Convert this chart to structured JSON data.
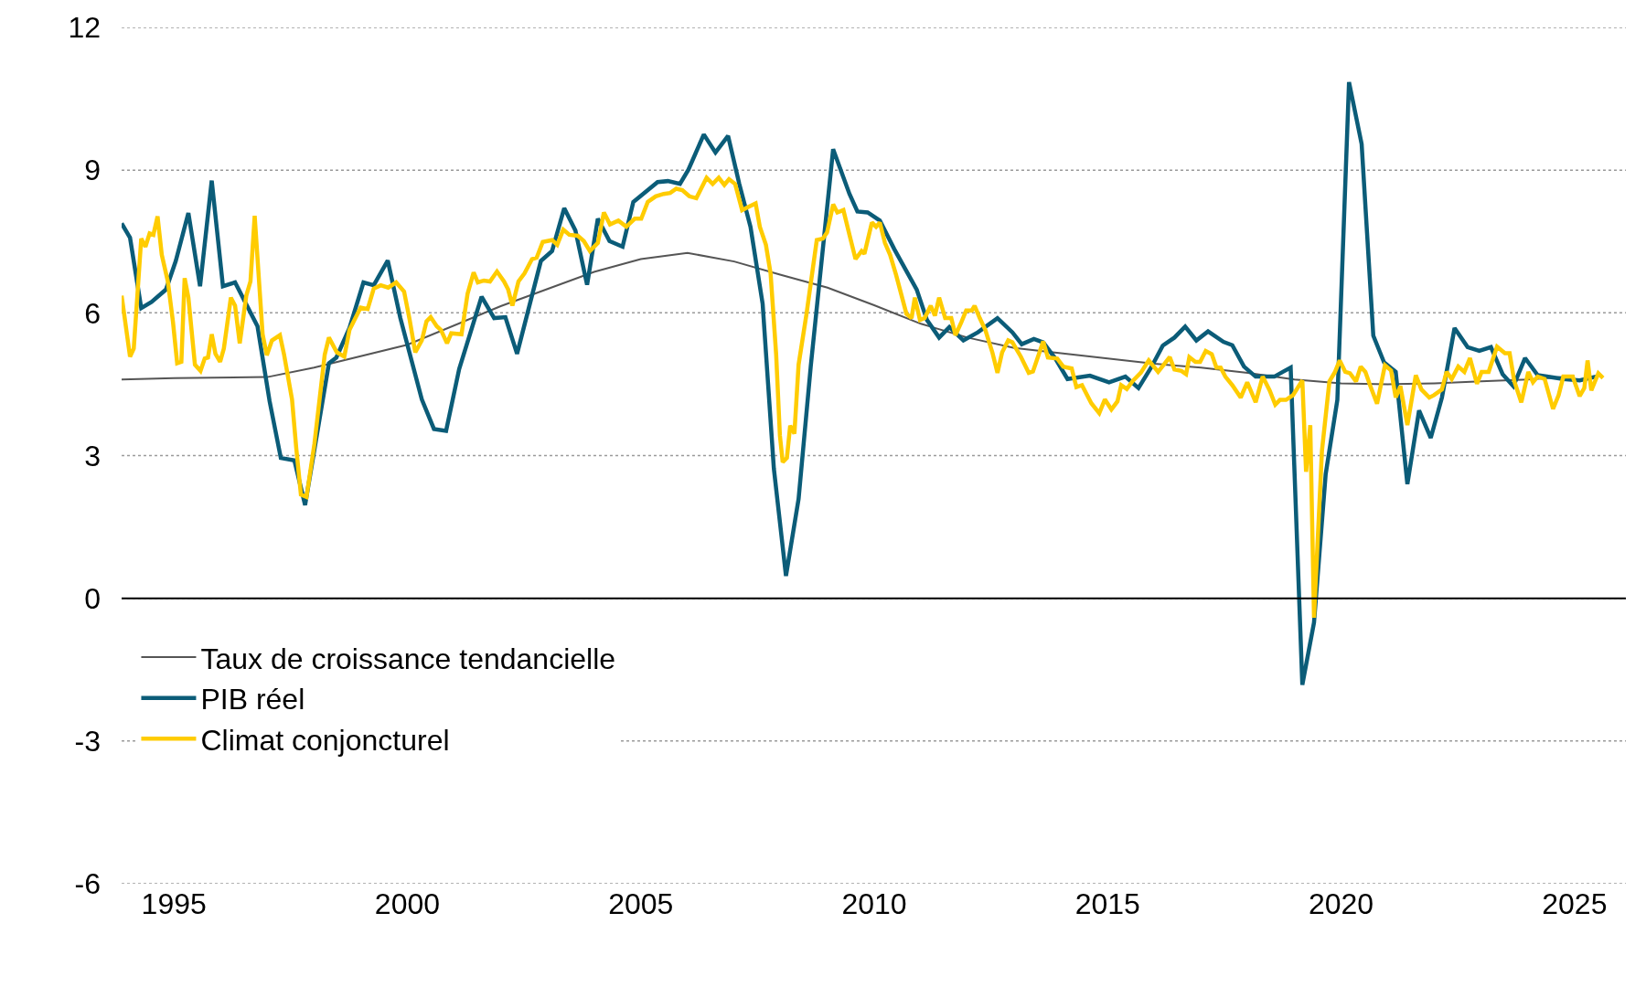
{
  "chart_data": {
    "type": "line",
    "xlim": [
      1993.88,
      2026.1
    ],
    "xticks": [
      1995,
      2000,
      2005,
      2010,
      2015,
      2020,
      2025
    ],
    "ylim": [
      -6,
      12
    ],
    "yticks": [
      -6,
      -3,
      0,
      3,
      6,
      9,
      12
    ],
    "grid": "y",
    "legend": "bottom left",
    "line_style": "solid",
    "ref_lines": [
      {
        "axis": "y",
        "value": 0,
        "color": "#000000"
      }
    ],
    "series": [
      {
        "name": "Taux de croissance tendancielle",
        "color": "#555555",
        "x": [
          1993.88,
          1995,
          1997,
          1998,
          2000,
          2002,
          2004,
          2005,
          2006,
          2007,
          2008,
          2009,
          2010,
          2011,
          2012,
          2013,
          2014,
          2015,
          2016,
          2017,
          2018,
          2019,
          2020,
          2021,
          2022,
          2023,
          2024,
          2025
        ],
        "values": [
          4.6,
          4.63,
          4.65,
          4.85,
          5.33,
          6.14,
          6.86,
          7.13,
          7.26,
          7.08,
          6.8,
          6.53,
          6.16,
          5.77,
          5.48,
          5.26,
          5.15,
          5.04,
          4.93,
          4.85,
          4.74,
          4.6,
          4.52,
          4.5,
          4.52,
          4.56,
          4.6,
          4.67
        ]
      },
      {
        "name": "PIB réel",
        "color": "#0b5c78",
        "x": [
          1993.88,
          1994.06,
          1994.3,
          1994.52,
          1994.83,
          1995.04,
          1995.31,
          1995.56,
          1995.81,
          1996.05,
          1996.31,
          1996.79,
          1997.05,
          1997.29,
          1997.58,
          1997.81,
          1998.32,
          1998.48,
          1998.76,
          1999.06,
          1999.28,
          1999.58,
          1999.85,
          2000.31,
          2000.57,
          2000.83,
          2001.11,
          2001.59,
          2001.86,
          2002.1,
          2002.35,
          2002.86,
          2003.1,
          2003.36,
          2003.6,
          2003.85,
          2004.08,
          2004.33,
          2004.61,
          2004.84,
          2005.36,
          2005.58,
          2005.84,
          2006.02,
          2006.35,
          2006.6,
          2006.87,
          2007.11,
          2007.35,
          2007.61,
          2007.85,
          2008.11,
          2008.38,
          2008.64,
          2009.12,
          2009.47,
          2009.64,
          2009.86,
          2010.12,
          2010.43,
          2010.91,
          2011.13,
          2011.39,
          2011.61,
          2011.91,
          2012.22,
          2012.64,
          2012.96,
          2013.16,
          2013.42,
          2013.62,
          2013.88,
          2014.14,
          2014.62,
          2015.03,
          2015.38,
          2015.66,
          2015.93,
          2016.18,
          2016.43,
          2016.66,
          2016.9,
          2017.15,
          2017.48,
          2017.67,
          2017.92,
          2018.17,
          2018.57,
          2018.77,
          2018.92,
          2019.17,
          2019.42,
          2019.67,
          2019.92,
          2020.17,
          2020.44,
          2020.69,
          2020.92,
          2021.17,
          2021.42,
          2021.67,
          2021.92,
          2022.16,
          2022.43,
          2022.71,
          2022.96,
          2023.21,
          2023.46,
          2023.69,
          2023.94,
          2024.21,
          2024.41,
          2024.76,
          2025.11,
          2025.46
        ],
        "values": [
          7.88,
          7.58,
          6.1,
          6.23,
          6.49,
          7.09,
          8.1,
          6.56,
          8.78,
          6.56,
          6.64,
          5.72,
          4.14,
          2.95,
          2.9,
          1.96,
          4.94,
          5.06,
          5.68,
          6.64,
          6.58,
          7.1,
          5.89,
          4.18,
          3.56,
          3.52,
          4.82,
          6.34,
          5.89,
          5.91,
          5.14,
          7.09,
          7.3,
          8.2,
          7.73,
          6.59,
          7.98,
          7.51,
          7.39,
          8.33,
          8.75,
          8.77,
          8.71,
          9.01,
          9.75,
          9.37,
          9.72,
          8.71,
          7.81,
          6.19,
          2.73,
          0.47,
          2.09,
          4.87,
          9.44,
          8.5,
          8.13,
          8.11,
          7.94,
          7.34,
          6.49,
          5.85,
          5.48,
          5.7,
          5.42,
          5.59,
          5.89,
          5.59,
          5.34,
          5.45,
          5.38,
          5.04,
          4.61,
          4.68,
          4.54,
          4.66,
          4.42,
          4.85,
          5.31,
          5.48,
          5.71,
          5.42,
          5.61,
          5.39,
          5.32,
          4.87,
          4.66,
          4.66,
          4.77,
          4.85,
          -1.82,
          -0.51,
          2.61,
          4.17,
          10.85,
          9.55,
          5.52,
          4.96,
          4.76,
          2.4,
          3.95,
          3.37,
          4.22,
          5.68,
          5.28,
          5.2,
          5.28,
          4.71,
          4.46,
          5.05,
          4.69,
          4.66,
          4.61,
          4.58,
          4.66
        ]
      },
      {
        "name": "Climat conjoncturel",
        "color": "#ffcc00",
        "x": [
          1993.88,
          1994.06,
          1994.14,
          1994.3,
          1994.39,
          1994.48,
          1994.56,
          1994.65,
          1994.74,
          1994.87,
          1994.98,
          1995.07,
          1995.16,
          1995.23,
          1995.31,
          1995.45,
          1995.57,
          1995.66,
          1995.73,
          1995.81,
          1995.89,
          1995.99,
          1996.07,
          1996.22,
          1996.31,
          1996.41,
          1996.55,
          1996.64,
          1996.73,
          1996.83,
          1996.9,
          1996.99,
          1997.1,
          1997.27,
          1997.36,
          1997.53,
          1997.62,
          1997.72,
          1997.84,
          1998.01,
          1998.23,
          1998.32,
          1998.49,
          1998.65,
          1998.76,
          1999.0,
          1999.15,
          1999.28,
          1999.43,
          1999.59,
          1999.76,
          1999.93,
          2000.05,
          2000.17,
          2000.31,
          2000.41,
          2000.5,
          2000.63,
          2000.72,
          2000.85,
          2000.94,
          2001.16,
          2001.29,
          2001.42,
          2001.51,
          2001.64,
          2001.77,
          2001.92,
          2002.07,
          2002.16,
          2002.25,
          2002.38,
          2002.51,
          2002.67,
          2002.77,
          2002.9,
          2003.1,
          2003.21,
          2003.34,
          2003.47,
          2003.65,
          2003.78,
          2003.91,
          2004.08,
          2004.21,
          2004.34,
          2004.52,
          2004.69,
          2004.87,
          2005.01,
          2005.15,
          2005.32,
          2005.49,
          2005.63,
          2005.76,
          2005.89,
          2006.04,
          2006.19,
          2006.41,
          2006.54,
          2006.67,
          2006.79,
          2006.89,
          2007.02,
          2007.17,
          2007.33,
          2007.46,
          2007.55,
          2007.68,
          2007.78,
          2007.9,
          2007.98,
          2008.04,
          2008.13,
          2008.2,
          2008.29,
          2008.38,
          2008.55,
          2008.77,
          2008.9,
          2008.99,
          2009.12,
          2009.21,
          2009.34,
          2009.47,
          2009.6,
          2009.73,
          2009.79,
          2009.95,
          2010.04,
          2010.12,
          2010.23,
          2010.34,
          2010.47,
          2010.69,
          2010.8,
          2010.87,
          2010.98,
          2011.08,
          2011.21,
          2011.3,
          2011.39,
          2011.52,
          2011.65,
          2011.74,
          2011.87,
          2011.97,
          2012.09,
          2012.15,
          2012.26,
          2012.38,
          2012.53,
          2012.64,
          2012.74,
          2012.87,
          2012.96,
          2013.14,
          2013.31,
          2013.4,
          2013.53,
          2013.62,
          2013.72,
          2013.92,
          2014.05,
          2014.23,
          2014.33,
          2014.45,
          2014.65,
          2014.82,
          2014.94,
          2015.08,
          2015.21,
          2015.29,
          2015.41,
          2015.54,
          2015.71,
          2015.88,
          2016.08,
          2016.33,
          2016.43,
          2016.58,
          2016.68,
          2016.75,
          2016.88,
          2016.98,
          2017.1,
          2017.23,
          2017.33,
          2017.42,
          2017.52,
          2017.67,
          2017.85,
          2017.99,
          2018.17,
          2018.32,
          2018.47,
          2018.59,
          2018.69,
          2018.82,
          2018.97,
          2019.17,
          2019.25,
          2019.34,
          2019.42,
          2019.59,
          2019.75,
          2019.87,
          2019.97,
          2020.09,
          2020.19,
          2020.32,
          2020.42,
          2020.52,
          2020.62,
          2020.77,
          2020.94,
          2021.07,
          2021.17,
          2021.27,
          2021.42,
          2021.6,
          2021.72,
          2021.89,
          2021.99,
          2022.16,
          2022.26,
          2022.37,
          2022.51,
          2022.64,
          2022.76,
          2022.91,
          2023.01,
          2023.16,
          2023.34,
          2023.51,
          2023.61,
          2023.71,
          2023.86,
          2024.01,
          2024.11,
          2024.21,
          2024.36,
          2024.54,
          2024.66,
          2024.76,
          2024.96,
          2025.11,
          2025.21,
          2025.28,
          2025.36,
          2025.51,
          2025.61
        ],
        "values": [
          6.36,
          5.08,
          5.25,
          7.56,
          7.39,
          7.67,
          7.64,
          8.03,
          7.22,
          6.66,
          5.81,
          4.94,
          4.97,
          6.73,
          6.32,
          4.91,
          4.78,
          5.04,
          5.06,
          5.55,
          5.14,
          4.97,
          5.25,
          6.32,
          6.15,
          5.36,
          6.36,
          6.66,
          8.04,
          6.57,
          5.55,
          5.11,
          5.42,
          5.53,
          5.12,
          4.18,
          3.16,
          2.18,
          2.13,
          3.25,
          5.12,
          5.48,
          5.17,
          5.08,
          5.64,
          6.11,
          6.08,
          6.51,
          6.58,
          6.53,
          6.64,
          6.45,
          5.85,
          5.17,
          5.42,
          5.82,
          5.91,
          5.72,
          5.64,
          5.36,
          5.57,
          5.55,
          6.4,
          6.85,
          6.64,
          6.68,
          6.66,
          6.87,
          6.66,
          6.49,
          6.15,
          6.66,
          6.83,
          7.13,
          7.16,
          7.49,
          7.53,
          7.43,
          7.75,
          7.64,
          7.62,
          7.51,
          7.3,
          7.47,
          8.11,
          7.86,
          7.94,
          7.81,
          7.98,
          7.98,
          8.33,
          8.45,
          8.5,
          8.52,
          8.61,
          8.58,
          8.45,
          8.41,
          8.84,
          8.71,
          8.84,
          8.69,
          8.81,
          8.71,
          8.16,
          8.24,
          8.3,
          7.81,
          7.43,
          6.83,
          5.12,
          3.42,
          2.86,
          2.95,
          3.63,
          3.46,
          4.91,
          5.98,
          7.53,
          7.56,
          7.69,
          8.28,
          8.11,
          8.16,
          7.64,
          7.13,
          7.3,
          7.24,
          7.9,
          7.81,
          7.9,
          7.47,
          7.22,
          6.79,
          5.98,
          5.89,
          6.32,
          5.85,
          5.89,
          6.15,
          5.94,
          6.32,
          5.89,
          5.89,
          5.53,
          5.81,
          6.05,
          6.05,
          6.15,
          5.89,
          5.64,
          5.17,
          4.74,
          5.17,
          5.42,
          5.38,
          5.08,
          4.74,
          4.77,
          5.14,
          5.4,
          5.06,
          5.04,
          4.87,
          4.83,
          4.44,
          4.48,
          4.1,
          3.89,
          4.18,
          3.97,
          4.14,
          4.48,
          4.4,
          4.57,
          4.74,
          5.0,
          4.76,
          5.07,
          4.81,
          4.78,
          4.71,
          5.07,
          4.97,
          4.97,
          5.2,
          5.13,
          4.85,
          4.85,
          4.66,
          4.48,
          4.22,
          4.54,
          4.12,
          4.66,
          4.37,
          4.07,
          4.17,
          4.17,
          4.27,
          4.58,
          2.66,
          3.64,
          -0.41,
          3.1,
          4.56,
          4.76,
          5.0,
          4.76,
          4.73,
          4.56,
          4.87,
          4.76,
          4.48,
          4.09,
          4.9,
          4.79,
          4.22,
          4.46,
          3.64,
          4.69,
          4.39,
          4.22,
          4.27,
          4.39,
          4.76,
          4.61,
          4.87,
          4.76,
          5.05,
          4.51,
          4.76,
          4.76,
          5.29,
          5.15,
          5.15,
          4.56,
          4.12,
          4.76,
          4.54,
          4.66,
          4.61,
          3.98,
          4.27,
          4.66,
          4.66,
          4.25,
          4.42,
          5.0,
          4.37,
          4.73,
          4.63
        ]
      }
    ]
  }
}
